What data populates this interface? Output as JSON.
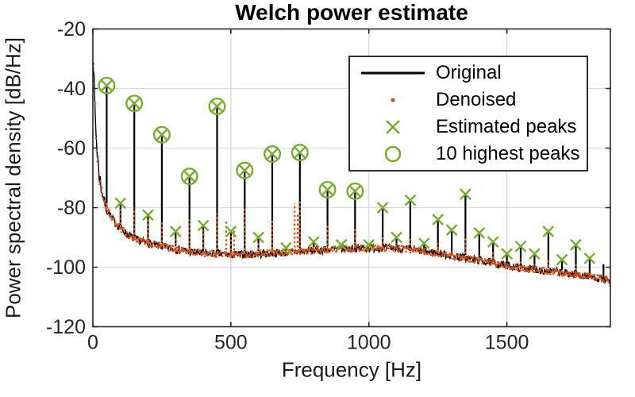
{
  "figure": {
    "title": "Welch power estimate",
    "xlabel": "Frequency [Hz]",
    "ylabel": "Power spectral density [dB/Hz]"
  },
  "legend": [
    {
      "label": "Original",
      "marker": "line",
      "color": "#000000"
    },
    {
      "label": "Denoised",
      "marker": "dot",
      "color": "#D95319"
    },
    {
      "label": "Estimated peaks",
      "marker": "x",
      "color": "#77AC30"
    },
    {
      "label": "10 highest peaks",
      "marker": "circle",
      "color": "#77AC30"
    }
  ],
  "chart_data": {
    "type": "line",
    "title": "Welch power estimate",
    "xlabel": "Frequency [Hz]",
    "ylabel": "Power spectral density [dB/Hz]",
    "xlim": [
      0,
      1875
    ],
    "ylim": [
      -120,
      -20
    ],
    "xticks": [
      0,
      500,
      1000,
      1500
    ],
    "yticks": [
      -20,
      -40,
      -60,
      -80,
      -100,
      -120
    ],
    "grid": true,
    "legend_position": "upper right",
    "colors": {
      "original": "#000000",
      "denoised": "#D95319",
      "peaks": "#77AC30",
      "grid": "#d9d9d9",
      "axis": "#262626",
      "tick_text": "#262626"
    },
    "peaks_fields": [
      "freq_hz",
      "db",
      "denoised_db",
      "is_top10"
    ],
    "peaks": [
      [
        50,
        -39,
        -78,
        1
      ],
      [
        100,
        -78.5,
        -80,
        0
      ],
      [
        150,
        -45,
        -80,
        1
      ],
      [
        200,
        -82.5,
        -84,
        0
      ],
      [
        250,
        -55.5,
        -85,
        1
      ],
      [
        300,
        -88,
        -89.5,
        0
      ],
      [
        350,
        -69.5,
        -84,
        1
      ],
      [
        400,
        -86,
        -87.5,
        0
      ],
      [
        450,
        -46,
        -82,
        1
      ],
      [
        500,
        -88,
        -89.5,
        0
      ],
      [
        550,
        -67.5,
        -80,
        1
      ],
      [
        600,
        -90,
        -91.5,
        0
      ],
      [
        650,
        -62,
        -84,
        1
      ],
      [
        700,
        -93.5,
        -95,
        0
      ],
      [
        750,
        -61.5,
        -78,
        1
      ],
      [
        800,
        -91.5,
        -93,
        0
      ],
      [
        850,
        -74,
        -86,
        1
      ],
      [
        900,
        -92.5,
        -94,
        0
      ],
      [
        950,
        -74.5,
        -87,
        1
      ],
      [
        1000,
        -92.5,
        -93.5,
        0
      ],
      [
        1050,
        -80,
        -90,
        0
      ],
      [
        1100,
        -90,
        -92,
        0
      ],
      [
        1150,
        -77.5,
        -90,
        0
      ],
      [
        1200,
        -92,
        -93.5,
        0
      ],
      [
        1250,
        -84,
        -92,
        0
      ],
      [
        1300,
        -87.5,
        -95,
        0
      ],
      [
        1350,
        -75.5,
        -90,
        0
      ],
      [
        1400,
        -88.5,
        -96,
        0
      ],
      [
        1450,
        -91.5,
        -95,
        0
      ],
      [
        1500,
        -95.5,
        -98,
        0
      ],
      [
        1550,
        -93,
        -97,
        0
      ],
      [
        1600,
        -95.5,
        -99,
        0
      ],
      [
        1650,
        -88,
        -97,
        0
      ],
      [
        1700,
        -97.5,
        -100.5,
        0
      ],
      [
        1750,
        -92.5,
        -99,
        0
      ],
      [
        1800,
        -97,
        -101.5,
        0
      ]
    ],
    "noise_floor_points": [
      [
        0,
        -28.5
      ],
      [
        2,
        -31
      ],
      [
        5,
        -40
      ],
      [
        8,
        -48
      ],
      [
        12,
        -56
      ],
      [
        16,
        -62
      ],
      [
        22,
        -68
      ],
      [
        30,
        -73.5
      ],
      [
        40,
        -77.5
      ],
      [
        50,
        -80.5
      ],
      [
        65,
        -83
      ],
      [
        80,
        -85
      ],
      [
        100,
        -87
      ],
      [
        125,
        -89
      ],
      [
        150,
        -90.5
      ],
      [
        200,
        -92
      ],
      [
        250,
        -93
      ],
      [
        300,
        -94
      ],
      [
        350,
        -94.8
      ],
      [
        400,
        -95.3
      ],
      [
        500,
        -95.8
      ],
      [
        600,
        -95.6
      ],
      [
        700,
        -95.1
      ],
      [
        800,
        -94.4
      ],
      [
        900,
        -93.8
      ],
      [
        1000,
        -93.5
      ],
      [
        1080,
        -93.6
      ],
      [
        1150,
        -94.1
      ],
      [
        1250,
        -95.3
      ],
      [
        1350,
        -96.9
      ],
      [
        1450,
        -98.6
      ],
      [
        1550,
        -100.2
      ],
      [
        1650,
        -101.3
      ],
      [
        1750,
        -102.4
      ],
      [
        1830,
        -103.6
      ],
      [
        1862,
        -104.2
      ],
      [
        1875,
        -106
      ]
    ],
    "extra_denoised_bumps": [
      [
        483,
        -84
      ],
      [
        512,
        -86.5
      ],
      [
        731,
        -78.5
      ],
      [
        742,
        -82
      ]
    ],
    "unmarked_spikes": [
      [
        1850,
        -99
      ]
    ]
  }
}
